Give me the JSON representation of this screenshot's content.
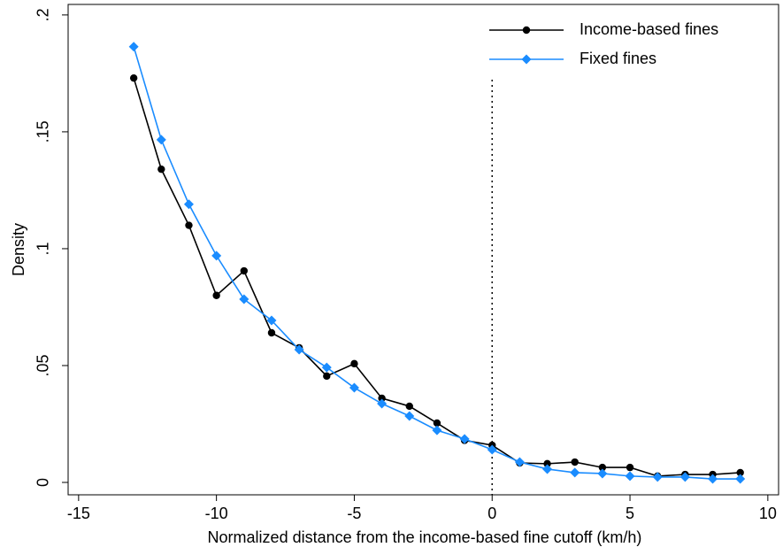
{
  "chart_data": {
    "type": "line",
    "x_label": "Normalized distance from the income-based fine cutoff (km/h)",
    "y_label": "Density",
    "x": [
      -13,
      -12,
      -11,
      -10,
      -9,
      -8,
      -7,
      -6,
      -5,
      -4,
      -3,
      -2,
      -1,
      0,
      1,
      2,
      3,
      4,
      5,
      6,
      7,
      8,
      9
    ],
    "series": [
      {
        "name": "Income-based fines",
        "color": "#000000",
        "marker": "circle",
        "values": [
          0.173,
          0.134,
          0.11,
          0.08,
          0.0905,
          0.064,
          0.0576,
          0.0455,
          0.0508,
          0.036,
          0.0326,
          0.0254,
          0.018,
          0.0159,
          0.0083,
          0.008,
          0.0087,
          0.0064,
          0.0064,
          0.0027,
          0.0034,
          0.0034,
          0.0042
        ]
      },
      {
        "name": "Fixed fines",
        "color": "#1a8cff",
        "marker": "diamond",
        "values": [
          0.1864,
          0.1466,
          0.119,
          0.097,
          0.0784,
          0.0693,
          0.0568,
          0.0492,
          0.0405,
          0.0337,
          0.0284,
          0.0223,
          0.0186,
          0.014,
          0.0087,
          0.0057,
          0.0042,
          0.0038,
          0.0027,
          0.0023,
          0.0023,
          0.0015,
          0.0015
        ]
      }
    ],
    "xlim": [
      -15.38,
      10.39
    ],
    "ylim": [
      -0.0053,
      0.2045
    ],
    "xticks": [
      -15,
      -10,
      -5,
      0,
      5,
      10
    ],
    "yticks": [
      0,
      {
        "value": 0.05,
        "label": ".05"
      },
      {
        "value": 0.1,
        "label": ".1"
      },
      {
        "value": 0.15,
        "label": ".15"
      },
      {
        "value": 0.2,
        "label": ".2"
      }
    ],
    "vline": 0,
    "legend": "top-right"
  }
}
